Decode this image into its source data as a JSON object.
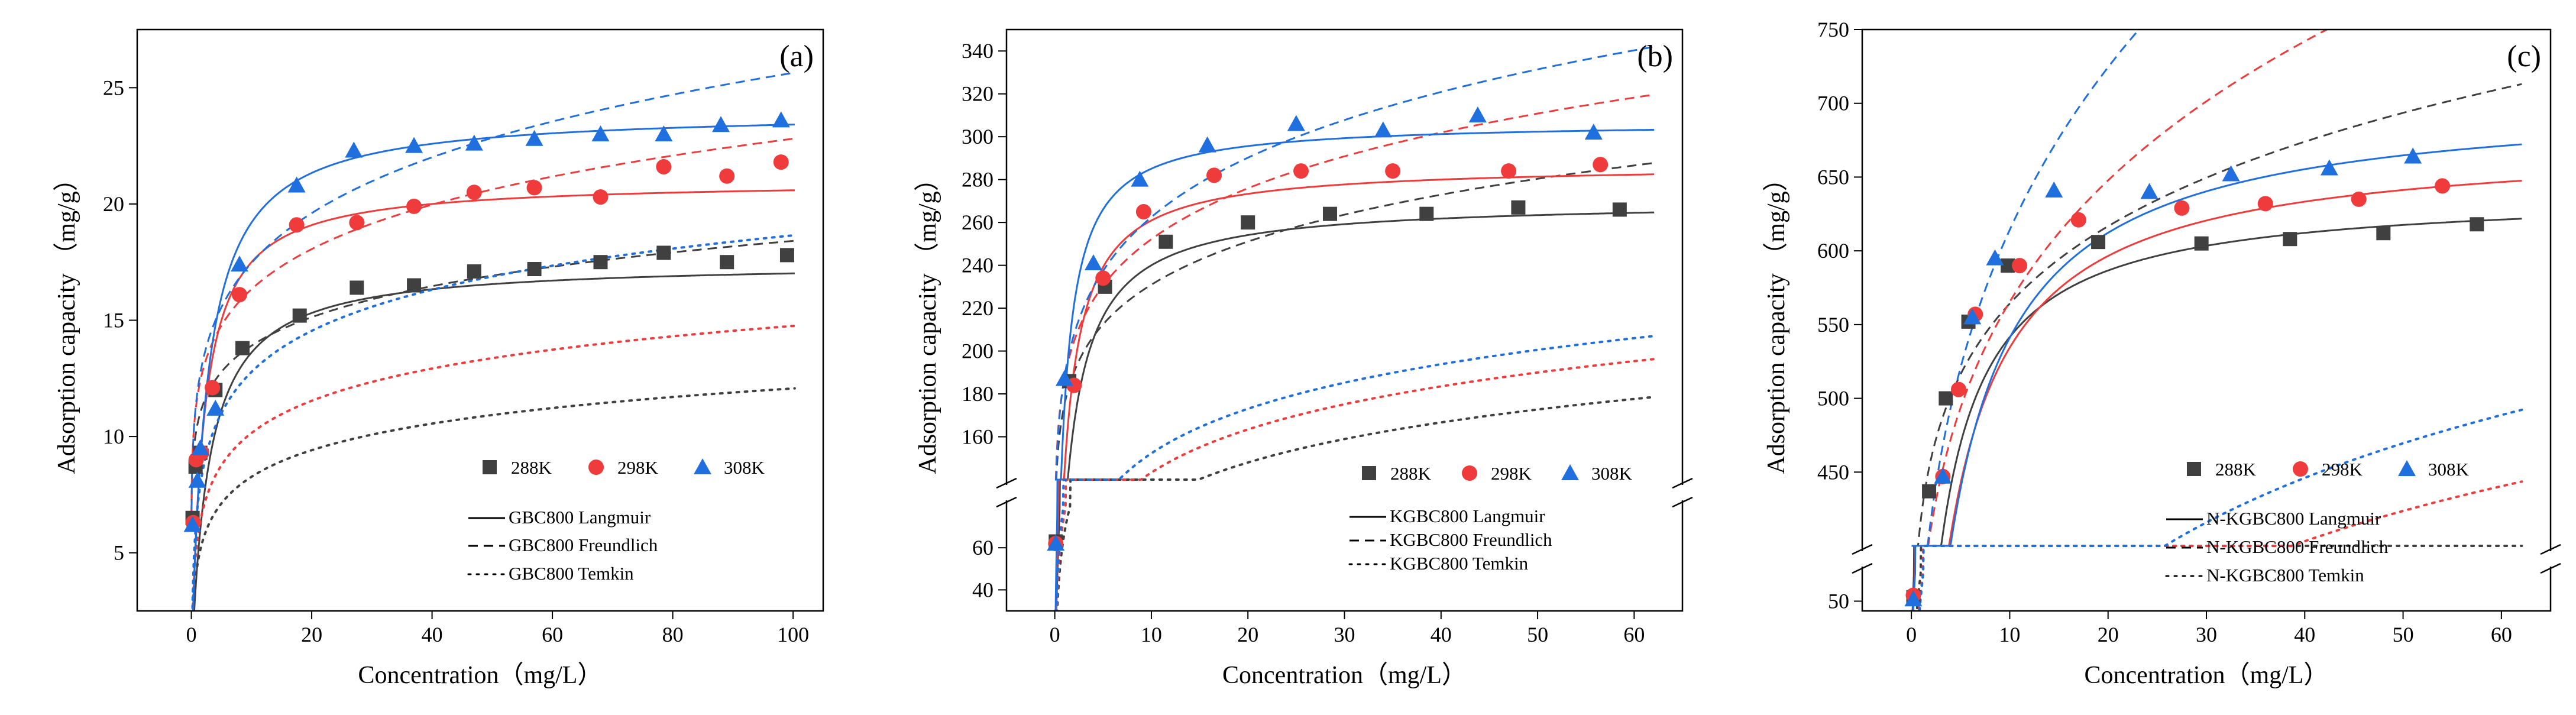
{
  "figure": {
    "colors": {
      "288K": "#404040",
      "298K": "#ef3b3b",
      "308K": "#1f6fdf"
    },
    "line_styles": {
      "Langmuir": "solid",
      "Freundlich": "dashed",
      "Temkin": "dotted"
    }
  },
  "chart_data": [
    {
      "type": "scatter",
      "panel_label": "(a)",
      "xlabel": "Concentration（mg/L）",
      "ylabel": "Adsorption capacity （mg/g）",
      "xlim": [
        -9,
        105
      ],
      "ylim": [
        2.5,
        27.5
      ],
      "xticks": [
        0,
        20,
        40,
        60,
        80,
        100
      ],
      "xtick_labels": [
        "0",
        "20",
        "40",
        "60",
        "80",
        "100"
      ],
      "yticks": [
        5,
        10,
        15,
        20,
        25
      ],
      "ytick_labels": [
        "5",
        "10",
        "15",
        "20",
        "25"
      ],
      "legend_scatter": [
        "288K",
        "298K",
        "308K"
      ],
      "legend_fits": [
        "GBC800 Langmuir",
        "GBC800 Freundlich",
        "GBC800 Temkin"
      ],
      "legend_placement": "bottom-right",
      "series": [
        {
          "name": "288K",
          "marker": "square",
          "x": [
            0.2,
            0.7,
            1.5,
            4,
            8.5,
            18,
            27.5,
            37,
            47,
            57,
            68,
            78.5,
            89,
            99
          ],
          "y": [
            6.5,
            8.7,
            9.3,
            12,
            13.8,
            15.2,
            16.4,
            16.5,
            17.1,
            17.2,
            17.5,
            17.9,
            17.5,
            17.8
          ],
          "fits": {
            "Langmuir": {
              "qm": 17.5,
              "KL": 0.35
            },
            "Freundlich": {
              "KF": 10.5,
              "n": 8.2
            },
            "Temkin": {
              "A": 15,
              "B": 1.65
            }
          }
        },
        {
          "name": "298K",
          "marker": "circle",
          "x": [
            0.3,
            0.8,
            1.7,
            3.5,
            8,
            17.5,
            27.5,
            37,
            47,
            57,
            68,
            78.5,
            89,
            98
          ],
          "y": [
            6.3,
            9.0,
            9.3,
            12.1,
            16.1,
            19.1,
            19.2,
            19.9,
            20.5,
            20.7,
            20.3,
            21.6,
            21.2,
            21.8
          ],
          "fits": {
            "Langmuir": {
              "qm": 21.0,
              "KL": 0.5
            },
            "Freundlich": {
              "KF": 11.7,
              "n": 6.9
            },
            "Temkin": {
              "A": 16,
              "B": 2.0
            }
          }
        },
        {
          "name": "308K",
          "marker": "triangle",
          "x": [
            0.2,
            1,
            1.5,
            4,
            8,
            17.5,
            27,
            37,
            47,
            57,
            68,
            78.5,
            88,
            98
          ],
          "y": [
            6.2,
            8.1,
            9.5,
            11.2,
            17.4,
            20.8,
            22.3,
            22.5,
            22.6,
            22.8,
            23.0,
            23.0,
            23.4,
            23.6
          ],
          "fits": {
            "Langmuir": {
              "qm": 24.0,
              "KL": 0.4
            },
            "Freundlich": {
              "KF": 11.9,
              "n": 6.0
            },
            "Temkin": {
              "A": 15,
              "B": 2.55
            }
          }
        }
      ]
    },
    {
      "type": "scatter",
      "panel_label": "(b)",
      "xlabel": "Concentration（mg/L）",
      "ylabel": "Adsorption capacity （mg/g）",
      "xlim": [
        -5,
        65
      ],
      "axis_break": {
        "lower": [
          30,
          80
        ],
        "upper": [
          140,
          350
        ]
      },
      "xticks": [
        0,
        10,
        20,
        30,
        40,
        50,
        60
      ],
      "xtick_labels": [
        "0",
        "10",
        "20",
        "30",
        "40",
        "50",
        "60"
      ],
      "yticks": [
        40,
        60,
        160,
        180,
        200,
        220,
        240,
        260,
        280,
        300,
        320,
        340
      ],
      "ytick_labels": [
        "40",
        "60",
        "160",
        "180",
        "200",
        "220",
        "240",
        "260",
        "280",
        "300",
        "320",
        "340"
      ],
      "legend_scatter": [
        "288K",
        "298K",
        "308K"
      ],
      "legend_fits": [
        "KGBC800 Langmuir",
        "KGBC800 Freundlich",
        "KGBC800 Temkin"
      ],
      "legend_placement": "bottom-right",
      "series": [
        {
          "name": "288K",
          "marker": "square",
          "x": [
            0.1,
            1.5,
            5.2,
            11.5,
            20,
            28.5,
            38.5,
            48,
            58.5
          ],
          "y": [
            63,
            186,
            230,
            251,
            260,
            264,
            264,
            267,
            266
          ],
          "fits": {
            "Langmuir": {
              "qm": 270,
              "KL": 0.8
            },
            "Freundlich": {
              "KF": 175,
              "n": 8.3
            },
            "Temkin": {
              "A": 12,
              "B": 27
            }
          }
        },
        {
          "name": "298K",
          "marker": "circle",
          "x": [
            0.1,
            2,
            5,
            9.2,
            16.5,
            25.5,
            35,
            47,
            56.5
          ],
          "y": [
            62,
            184,
            234,
            265,
            282,
            284,
            284,
            284,
            287
          ],
          "fits": {
            "Langmuir": {
              "qm": 287,
              "KL": 1.0
            },
            "Freundlich": {
              "KF": 187,
              "n": 7.7
            },
            "Temkin": {
              "A": 14,
              "B": 29
            }
          }
        },
        {
          "name": "308K",
          "marker": "triangle",
          "x": [
            0.1,
            1,
            4,
            8.8,
            15.8,
            25,
            34,
            43.8,
            55.8
          ],
          "y": [
            62,
            187,
            241,
            280,
            296,
            306,
            303,
            310,
            302
          ],
          "fits": {
            "Langmuir": {
              "qm": 307,
              "KL": 1.3
            },
            "Freundlich": {
              "KF": 188,
              "n": 6.9
            },
            "Temkin": {
              "A": 16,
              "B": 30
            }
          }
        }
      ]
    },
    {
      "type": "scatter",
      "panel_label": "(c)",
      "xlabel": "Concentration（mg/L）",
      "ylabel": "Adsorption capacity （mg/g）",
      "xlim": [
        -5,
        65
      ],
      "axis_break": {
        "lower": [
          40,
          80
        ],
        "upper": [
          400,
          750
        ]
      },
      "xticks": [
        0,
        10,
        20,
        30,
        40,
        50,
        60
      ],
      "xtick_labels": [
        "0",
        "10",
        "20",
        "30",
        "40",
        "50",
        "60"
      ],
      "yticks": [
        50,
        450,
        500,
        550,
        600,
        650,
        700,
        750
      ],
      "ytick_labels": [
        "50",
        "450",
        "500",
        "550",
        "600",
        "650",
        "700",
        "750"
      ],
      "legend_scatter": [
        "288K",
        "298K",
        "308K"
      ],
      "legend_fits": [
        "N-KGBC800 Langmuir",
        "N-KGBC800 Freundlich",
        "N-KGBC800 Temkin"
      ],
      "legend_placement": "bottom-right",
      "series": [
        {
          "name": "288K",
          "marker": "square",
          "x": [
            0.2,
            1.8,
            3.5,
            5.8,
            9.8,
            19,
            29.5,
            38.5,
            48,
            57.5
          ],
          "y": [
            54,
            437,
            500,
            552,
            590,
            606,
            605,
            608,
            612,
            618
          ],
          "fits": {
            "Langmuir": {
              "qm": 640,
              "KL": 0.55
            },
            "Freundlich": {
              "KF": 420,
              "n": 7.8
            },
            "Temkin": {
              "A": 3.0,
              "B": 75
            }
          }
        },
        {
          "name": "298K",
          "marker": "circle",
          "x": [
            0.2,
            3.2,
            4.8,
            6.5,
            11,
            17,
            27.5,
            36,
            45.5,
            54
          ],
          "y": [
            56,
            447,
            506,
            557,
            590,
            621,
            629,
            632,
            635,
            644
          ],
          "fits": {
            "Langmuir": {
              "qm": 675,
              "KL": 0.38
            },
            "Freundlich": {
              "KF": 360,
              "n": 5.1
            },
            "Temkin": {
              "A": 2.0,
              "B": 92
            }
          }
        },
        {
          "name": "308K",
          "marker": "triangle",
          "x": [
            0.2,
            3.2,
            6.2,
            8.5,
            14.5,
            24.2,
            32.5,
            42.5,
            51
          ],
          "y": [
            52,
            447,
            555,
            595,
            641,
            640,
            652,
            656,
            664
          ],
          "fits": {
            "Langmuir": {
              "qm": 705,
              "KL": 0.33
            },
            "Freundlich": {
              "KF": 355,
              "n": 4.2
            },
            "Temkin": {
              "A": 1.75,
              "B": 105
            }
          }
        }
      ]
    }
  ]
}
